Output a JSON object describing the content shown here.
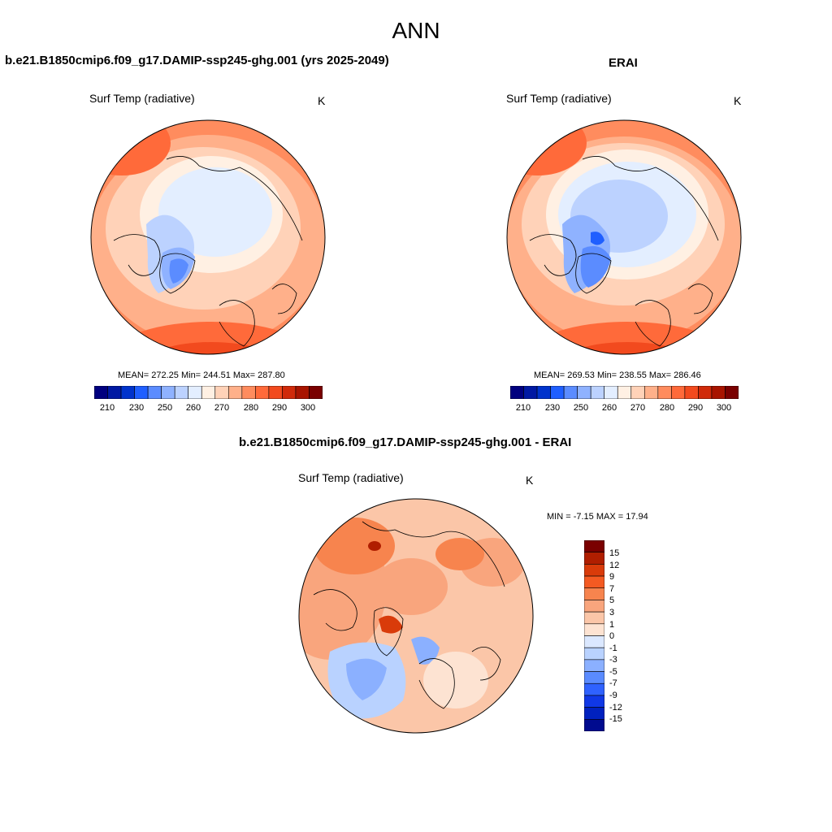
{
  "title": "ANN",
  "colors": {
    "sequential": [
      "#00007f",
      "#0019a3",
      "#0033cc",
      "#1f5fff",
      "#5b8cff",
      "#8fb2ff",
      "#bcd2ff",
      "#e3eeff",
      "#fff0e3",
      "#ffd2b8",
      "#ffb08a",
      "#ff8c5e",
      "#ff6a3a",
      "#f24a1e",
      "#d02a0a",
      "#a81400",
      "#7a0000"
    ],
    "difference": [
      "#7a0000",
      "#b01e00",
      "#d93b0a",
      "#f45a22",
      "#f7844e",
      "#f9a57d",
      "#fbc6a8",
      "#fde3d2",
      "#dbe8ff",
      "#b9d2ff",
      "#8bb0ff",
      "#5a8bff",
      "#2f62ff",
      "#1038e6",
      "#0021bf",
      "#000b8f"
    ],
    "land_outline": "#000000"
  },
  "panels": {
    "model": {
      "title": "b.e21.B1850cmip6.f09_g17.DAMIP-ssp245-ghg.001 (yrs 2025-2049)",
      "variable": "Surf Temp (radiative)",
      "units": "K",
      "stats": "MEAN= 272.25  Min= 244.51  Max= 287.80",
      "colorbar_labels": [
        "210",
        "230",
        "250",
        "260",
        "270",
        "280",
        "290",
        "300"
      ]
    },
    "obs": {
      "title": "ERAI",
      "variable": "Surf Temp (radiative)",
      "units": "K",
      "stats": "MEAN= 269.53  Min= 238.55  Max= 286.46",
      "colorbar_labels": [
        "210",
        "230",
        "250",
        "260",
        "270",
        "280",
        "290",
        "300"
      ]
    },
    "diff": {
      "title": "b.e21.B1850cmip6.f09_g17.DAMIP-ssp245-ghg.001 - ERAI",
      "variable": "Surf Temp (radiative)",
      "units": "K",
      "stats": "MIN =  -7.15 MAX =  17.94",
      "colorbar_labels": [
        "15",
        "12",
        "9",
        "7",
        "5",
        "3",
        "1",
        "0",
        "-1",
        "-3",
        "-5",
        "-7",
        "-9",
        "-12",
        "-15"
      ]
    }
  }
}
